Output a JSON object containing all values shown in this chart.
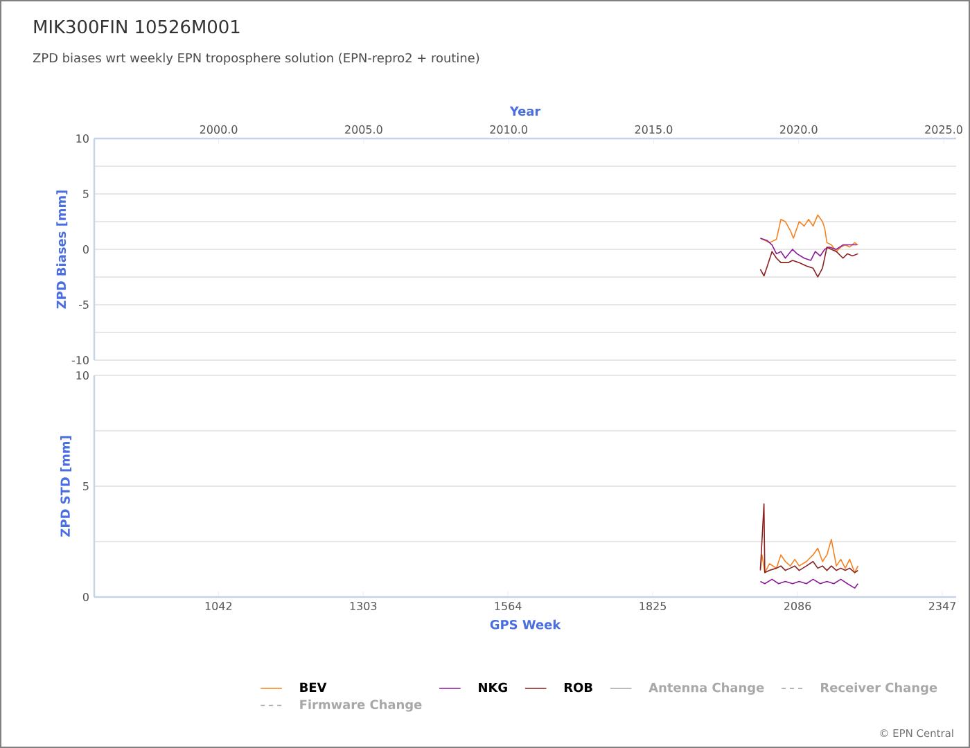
{
  "chart_data": [
    {
      "type": "line",
      "title": "MIK300FIN 10526M001",
      "subtitle": "ZPD biases wrt weekly EPN troposphere solution (EPN-repro2 + routine)",
      "x2label": "Year",
      "ylabel": "ZPD Biases [mm]",
      "xlim": [
        818,
        2372
      ],
      "x2lim": [
        1995.71,
        2025.43
      ],
      "x2ticks": [
        {
          "value": 2000,
          "label": "2000.0"
        },
        {
          "value": 2005,
          "label": "2005.0"
        },
        {
          "value": 2010,
          "label": "2010.0"
        },
        {
          "value": 2015,
          "label": "2015.0"
        },
        {
          "value": 2020,
          "label": "2020.0"
        },
        {
          "value": 2025,
          "label": "2025.0"
        }
      ],
      "ylim": [
        -10,
        10
      ],
      "yticks": [
        -10,
        {
          "value": -7.5,
          "label": null
        },
        -5,
        {
          "value": -2.5,
          "label": null
        },
        0,
        {
          "value": 2.5,
          "label": null
        },
        5,
        {
          "value": 7.5,
          "label": null
        },
        10
      ],
      "grid": "y",
      "series": [
        {
          "color": "#f5821f",
          "x": [
            2019,
            2035.5,
            2048,
            2056,
            2064,
            2073,
            2078.5,
            2089,
            2098,
            2106,
            2114,
            2122.5,
            2131,
            2135,
            2139,
            2147,
            2156,
            2164,
            2172,
            2180,
            2189,
            2195
          ],
          "values": [
            1.0,
            0.6,
            0.9,
            2.7,
            2.5,
            1.7,
            1.0,
            2.5,
            2.1,
            2.7,
            2.1,
            3.1,
            2.5,
            1.9,
            0.6,
            0.4,
            -0.2,
            0.2,
            0.4,
            0.2,
            0.6,
            0.4
          ]
        },
        {
          "color": "#8b1a9b",
          "x": [
            2019,
            2031,
            2040,
            2048,
            2056,
            2064,
            2077,
            2085,
            2098,
            2110,
            2118,
            2127,
            2135,
            2143,
            2156,
            2168,
            2180,
            2193
          ],
          "values": [
            1.0,
            0.8,
            0.4,
            -0.4,
            -0.2,
            -0.8,
            0,
            -0.4,
            -0.8,
            -1.0,
            -0.2,
            -0.6,
            0,
            0.2,
            0,
            0.4,
            0.4,
            0.4
          ]
        },
        {
          "color": "#8b2020",
          "x": [
            2019,
            2025.5,
            2031,
            2040,
            2048,
            2056,
            2069,
            2077,
            2089,
            2102,
            2114,
            2122.5,
            2131,
            2139,
            2147,
            2156,
            2168,
            2176,
            2185,
            2195
          ],
          "values": [
            -1.8,
            -2.4,
            -1.6,
            -0.2,
            -0.8,
            -1.2,
            -1.2,
            -1.0,
            -1.2,
            -1.5,
            -1.7,
            -2.5,
            -1.7,
            0.2,
            0,
            -0.2,
            -0.8,
            -0.4,
            -0.6,
            -0.4
          ]
        }
      ]
    },
    {
      "type": "line",
      "xlabel": "GPS Week",
      "ylabel": "ZPD STD [mm]",
      "xlim": [
        818,
        2372
      ],
      "xticks": [
        1042,
        1303,
        1564,
        1825,
        2086,
        2347
      ],
      "ylim": [
        0,
        10
      ],
      "yticks": [
        0,
        {
          "value": 2.5,
          "label": null
        },
        5,
        {
          "value": 7.5,
          "label": null
        },
        10
      ],
      "grid": "y",
      "legend": "bottom",
      "annotations": [
        "© EPN Central"
      ],
      "series": [
        {
          "name": "BEV",
          "color": "#f5821f",
          "x": [
            2019,
            2022,
            2027,
            2035.5,
            2048,
            2056,
            2064,
            2073,
            2081,
            2089,
            2102,
            2114,
            2122.5,
            2131,
            2139,
            2147,
            2156,
            2164,
            2172,
            2180,
            2189,
            2195
          ],
          "values": [
            1.3,
            1.9,
            1.1,
            1.5,
            1.3,
            1.9,
            1.6,
            1.4,
            1.7,
            1.4,
            1.6,
            1.9,
            2.2,
            1.6,
            1.9,
            2.6,
            1.4,
            1.7,
            1.3,
            1.7,
            1.1,
            1.4
          ]
        },
        {
          "name": "NKG",
          "color": "#8b1a9b",
          "x": [
            2019,
            2027,
            2040,
            2052,
            2064,
            2077,
            2089,
            2102,
            2114,
            2127,
            2139,
            2151.5,
            2164,
            2176,
            2189,
            2195
          ],
          "values": [
            0.7,
            0.6,
            0.8,
            0.6,
            0.7,
            0.6,
            0.7,
            0.6,
            0.8,
            0.6,
            0.7,
            0.6,
            0.8,
            0.6,
            0.4,
            0.6
          ]
        },
        {
          "name": "ROB",
          "color": "#8b2020",
          "x": [
            2019,
            2025.5,
            2027,
            2035.5,
            2048,
            2056,
            2064,
            2073,
            2081,
            2089,
            2102,
            2114,
            2122.5,
            2131,
            2139,
            2147,
            2156,
            2164,
            2172,
            2180,
            2189,
            2195
          ],
          "values": [
            1.2,
            4.2,
            1.1,
            1.2,
            1.3,
            1.4,
            1.2,
            1.3,
            1.4,
            1.2,
            1.4,
            1.6,
            1.3,
            1.4,
            1.2,
            1.4,
            1.2,
            1.3,
            1.2,
            1.3,
            1.1,
            1.2
          ]
        },
        {
          "name": "Antenna Change",
          "color": "#a8a8a8",
          "line_style": "solid"
        },
        {
          "name": "Receiver Change",
          "color": "#a8a8a8",
          "line_style": "dashed"
        },
        {
          "name": "Firmware Change",
          "color": "#a8a8a8",
          "line_style": "dashed"
        }
      ]
    }
  ]
}
